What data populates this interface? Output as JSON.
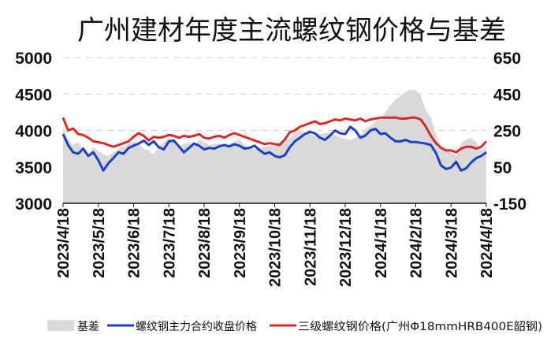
{
  "chart_data": {
    "type": "line",
    "title": "广州建材年度主流螺纹钢价格与基差",
    "x_tick_labels": [
      "2023/4/18",
      "2023/5/18",
      "2023/6/18",
      "2023/7/18",
      "2023/8/18",
      "2023/9/18",
      "2023/10/18",
      "2023/11/18",
      "2023/12/18",
      "2024/1/18",
      "2024/2/18",
      "2024/3/18",
      "2024/4/18"
    ],
    "y_left": {
      "ticks": [
        "3000",
        "3500",
        "4000",
        "4500",
        "5000"
      ],
      "lim": [
        3000,
        5000
      ]
    },
    "y_right": {
      "ticks": [
        "-150",
        "50",
        "250",
        "450",
        "650"
      ],
      "lim": [
        -150,
        650
      ]
    },
    "grid": true,
    "legend_position": "bottom",
    "x": [
      "2023/4/18",
      "2023/4/22",
      "2023/4/26",
      "2023/5/1",
      "2023/5/5",
      "2023/5/9",
      "2023/5/13",
      "2023/5/18",
      "2023/5/22",
      "2023/5/26",
      "2023/6/1",
      "2023/6/5",
      "2023/6/9",
      "2023/6/13",
      "2023/6/18",
      "2023/6/22",
      "2023/6/26",
      "2023/7/1",
      "2023/7/5",
      "2023/7/9",
      "2023/7/13",
      "2023/7/18",
      "2023/7/22",
      "2023/7/26",
      "2023/8/1",
      "2023/8/5",
      "2023/8/9",
      "2023/8/13",
      "2023/8/18",
      "2023/8/22",
      "2023/8/26",
      "2023/9/1",
      "2023/9/5",
      "2023/9/9",
      "2023/9/13",
      "2023/9/18",
      "2023/9/22",
      "2023/9/26",
      "2023/10/1",
      "2023/10/5",
      "2023/10/9",
      "2023/10/13",
      "2023/10/18",
      "2023/10/22",
      "2023/10/26",
      "2023/11/1",
      "2023/11/5",
      "2023/11/9",
      "2023/11/13",
      "2023/11/18",
      "2023/11/22",
      "2023/11/26",
      "2023/12/1",
      "2023/12/5",
      "2023/12/9",
      "2023/12/13",
      "2023/12/18",
      "2023/12/22",
      "2023/12/26",
      "2024/1/1",
      "2024/1/5",
      "2024/1/9",
      "2024/1/13",
      "2024/1/18",
      "2024/1/22",
      "2024/1/26",
      "2024/2/1",
      "2024/2/5",
      "2024/2/9",
      "2024/2/13",
      "2024/2/18",
      "2024/2/22",
      "2024/2/26",
      "2024/3/1",
      "2024/3/5",
      "2024/3/9",
      "2024/3/13",
      "2024/3/18",
      "2024/3/22",
      "2024/3/26",
      "2024/4/1",
      "2024/4/5",
      "2024/4/9",
      "2024/4/13",
      "2024/4/18"
    ],
    "series": [
      {
        "name": "基差",
        "axis": "right",
        "style": "area",
        "color": "#d9d9d9",
        "values": [
          260,
          200,
          170,
          185,
          150,
          120,
          160,
          135,
          120,
          110,
          130,
          150,
          160,
          180,
          190,
          175,
          150,
          140,
          120,
          160,
          185,
          210,
          190,
          160,
          175,
          185,
          165,
          200,
          190,
          170,
          175,
          180,
          160,
          175,
          190,
          200,
          170,
          160,
          145,
          155,
          160,
          165,
          170,
          190,
          200,
          205,
          245,
          255,
          240,
          230,
          220,
          230,
          235,
          240,
          225,
          210,
          205,
          195,
          210,
          225,
          260,
          275,
          300,
          320,
          350,
          390,
          420,
          440,
          460,
          475,
          470,
          440,
          360,
          320,
          230,
          160,
          150,
          130,
          110,
          180,
          200,
          210,
          185,
          140,
          160
        ]
      },
      {
        "name": "螺纹钢主力合约收盘价格",
        "axis": "left",
        "style": "line",
        "color": "#1f3fbf",
        "values": [
          3950,
          3800,
          3700,
          3680,
          3750,
          3650,
          3700,
          3590,
          3450,
          3550,
          3620,
          3700,
          3680,
          3760,
          3790,
          3820,
          3860,
          3800,
          3850,
          3770,
          3740,
          3850,
          3860,
          3780,
          3700,
          3760,
          3820,
          3790,
          3740,
          3760,
          3750,
          3780,
          3800,
          3780,
          3810,
          3790,
          3750,
          3760,
          3790,
          3730,
          3680,
          3700,
          3650,
          3630,
          3660,
          3770,
          3850,
          3900,
          3950,
          3980,
          3960,
          3900,
          3870,
          3930,
          4000,
          3960,
          3950,
          4050,
          4000,
          3900,
          3930,
          4000,
          4020,
          3950,
          3960,
          3900,
          3850,
          3850,
          3870,
          3840,
          3840,
          3830,
          3820,
          3800,
          3690,
          3520,
          3470,
          3490,
          3570,
          3450,
          3480,
          3560,
          3620,
          3650,
          3700
        ]
      },
      {
        "name": "三级螺纹钢价格(广州Φ18mmHRB400E韶钢)",
        "axis": "right",
        "style": "line",
        "color": "#d62b2b",
        "values": [
          320,
          250,
          260,
          230,
          225,
          210,
          190,
          185,
          180,
          170,
          160,
          170,
          180,
          190,
          215,
          235,
          220,
          195,
          215,
          210,
          215,
          225,
          220,
          210,
          220,
          215,
          220,
          230,
          210,
          205,
          215,
          220,
          210,
          225,
          235,
          225,
          215,
          205,
          195,
          185,
          175,
          180,
          175,
          170,
          200,
          240,
          250,
          270,
          280,
          290,
          300,
          285,
          290,
          300,
          310,
          305,
          315,
          310,
          305,
          315,
          300,
          310,
          315,
          320,
          320,
          320,
          320,
          315,
          315,
          320,
          320,
          310,
          270,
          220,
          180,
          155,
          140,
          140,
          130,
          150,
          160,
          160,
          150,
          160,
          190
        ]
      }
    ]
  }
}
